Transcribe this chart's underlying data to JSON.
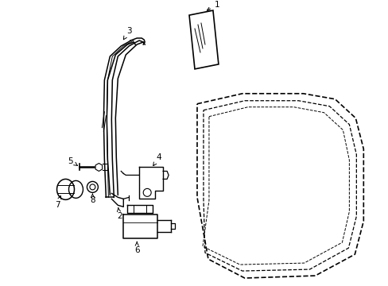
{
  "background_color": "#ffffff",
  "line_color": "#000000",
  "parts": [
    "1",
    "2",
    "3",
    "4",
    "5",
    "6",
    "7",
    "8"
  ]
}
